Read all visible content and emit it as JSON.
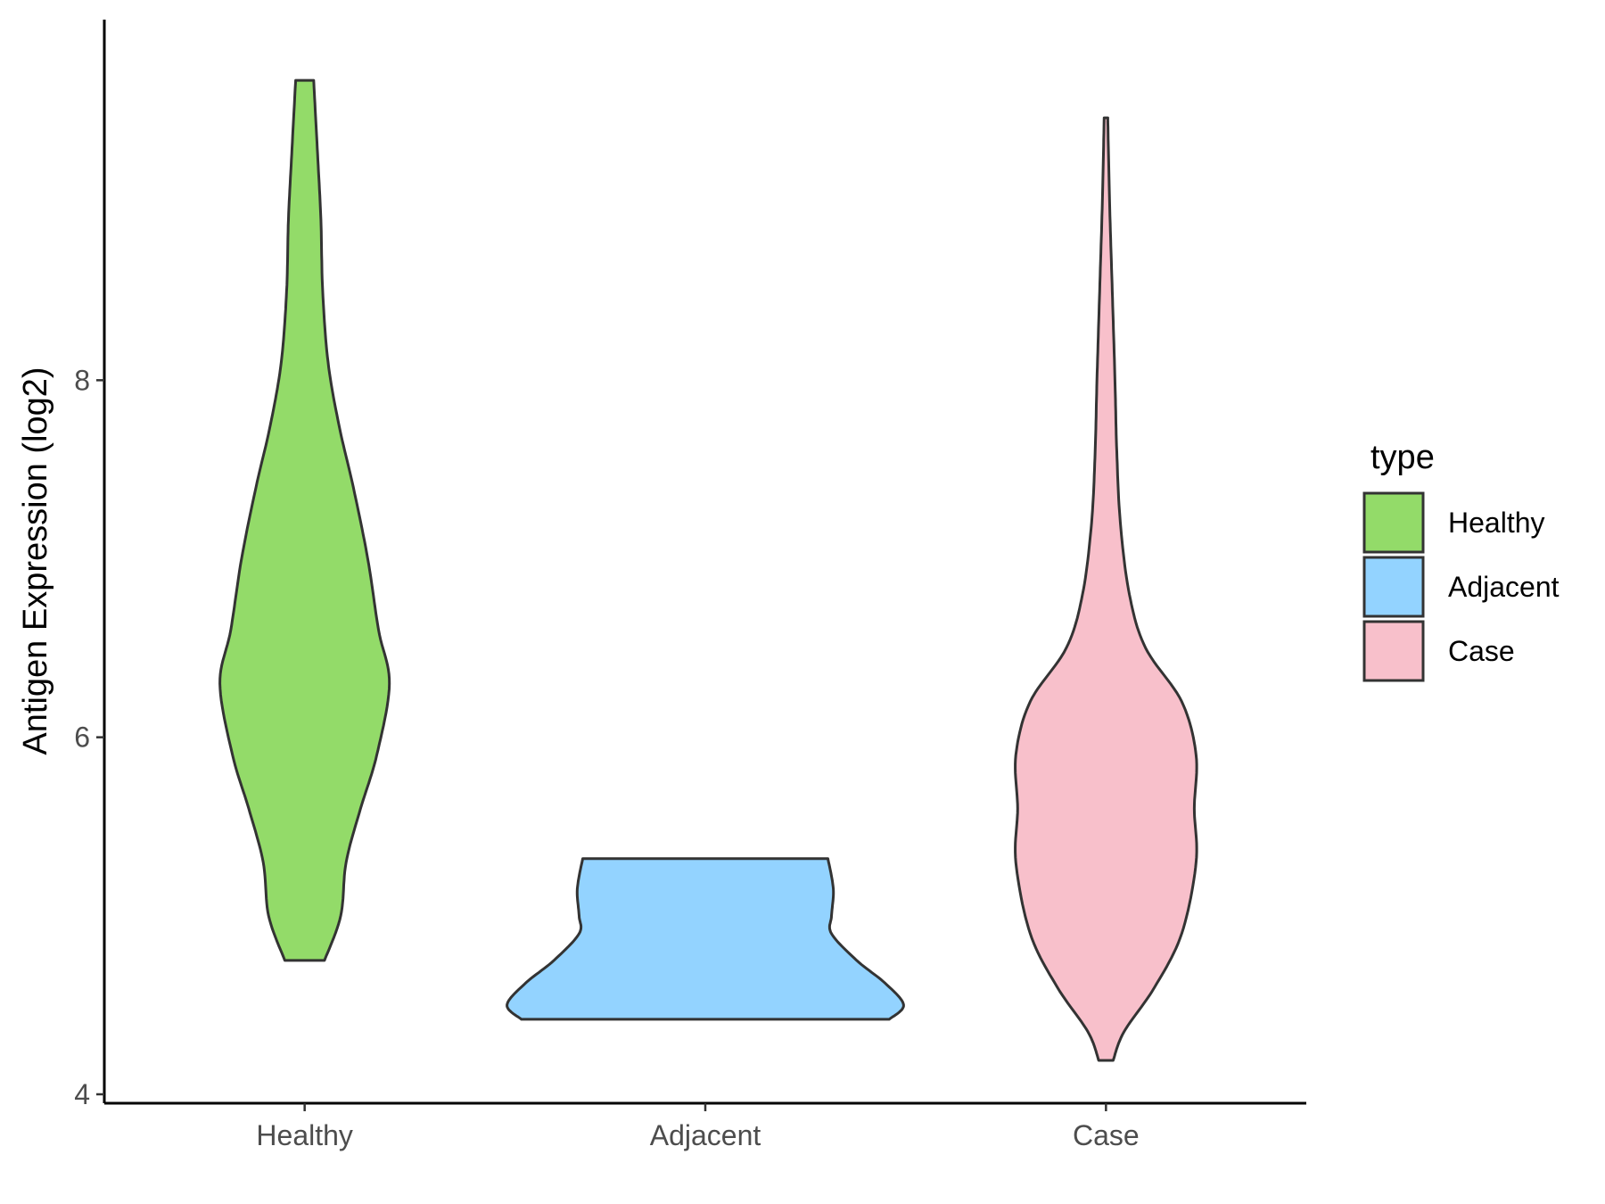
{
  "chart_data": {
    "type": "violin",
    "xlabel": "",
    "ylabel": "Antigen Expression (log2)",
    "ylim": [
      3.95,
      10.02
    ],
    "yticks": [
      "4",
      "6",
      "8"
    ],
    "categories": [
      "Healthy",
      "Adjacent",
      "Case"
    ],
    "legend": {
      "title": "type",
      "position": "right",
      "entries": [
        "Healthy",
        "Adjacent",
        "Case"
      ]
    },
    "colors": {
      "Healthy": "#93DB69",
      "Adjacent": "#93D3FF",
      "Case": "#F8C0CB"
    },
    "grid": false,
    "series": [
      {
        "name": "Healthy",
        "min": 4.75,
        "max": 9.68,
        "profile": [
          [
            4.75,
            0.11
          ],
          [
            5.0,
            0.2
          ],
          [
            5.3,
            0.23
          ],
          [
            5.6,
            0.31
          ],
          [
            5.9,
            0.4
          ],
          [
            6.3,
            0.47
          ],
          [
            6.6,
            0.41
          ],
          [
            7.0,
            0.35
          ],
          [
            7.4,
            0.27
          ],
          [
            7.75,
            0.19
          ],
          [
            8.1,
            0.13
          ],
          [
            8.5,
            0.1
          ],
          [
            8.9,
            0.09
          ],
          [
            9.3,
            0.07
          ],
          [
            9.68,
            0.05
          ]
        ]
      },
      {
        "name": "Adjacent",
        "min": 4.42,
        "max": 5.32,
        "profile": [
          [
            4.42,
            1.02
          ],
          [
            4.5,
            1.1
          ],
          [
            4.62,
            1.0
          ],
          [
            4.75,
            0.84
          ],
          [
            4.9,
            0.7
          ],
          [
            5.0,
            0.7
          ],
          [
            5.15,
            0.71
          ],
          [
            5.32,
            0.68
          ]
        ]
      },
      {
        "name": "Case",
        "min": 4.19,
        "max": 9.47,
        "profile": [
          [
            4.19,
            0.04
          ],
          [
            4.35,
            0.1
          ],
          [
            4.6,
            0.27
          ],
          [
            4.9,
            0.42
          ],
          [
            5.3,
            0.5
          ],
          [
            5.6,
            0.49
          ],
          [
            5.9,
            0.5
          ],
          [
            6.2,
            0.42
          ],
          [
            6.5,
            0.22
          ],
          [
            6.8,
            0.13
          ],
          [
            7.2,
            0.08
          ],
          [
            7.6,
            0.06
          ],
          [
            8.0,
            0.05
          ],
          [
            8.5,
            0.035
          ],
          [
            9.0,
            0.02
          ],
          [
            9.47,
            0.01
          ]
        ]
      }
    ]
  }
}
